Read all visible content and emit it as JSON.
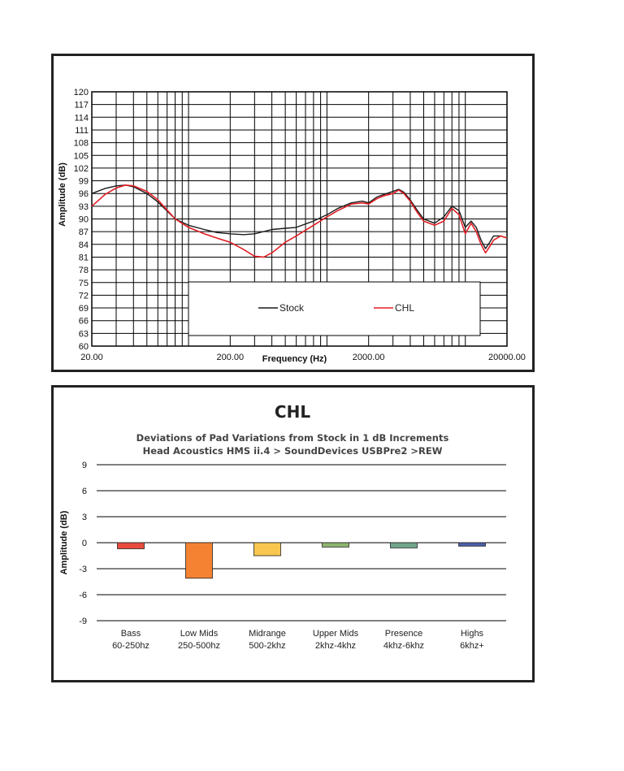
{
  "chart_data": [
    {
      "type": "line",
      "title": "",
      "xlabel": "Frequency (Hz)",
      "ylabel": "Amplitude (dB)",
      "x_scale": "log",
      "xlim": [
        20,
        20000
      ],
      "ylim": [
        60,
        120
      ],
      "x_tick_labels": [
        "20.00",
        "200.00",
        "2000.00",
        "20000.00"
      ],
      "x_ticks": [
        20,
        200,
        2000,
        20000
      ],
      "y_ticks": [
        60,
        63,
        66,
        69,
        72,
        75,
        78,
        81,
        84,
        87,
        90,
        93,
        96,
        99,
        102,
        105,
        108,
        111,
        114,
        117,
        120
      ],
      "grid": true,
      "legend_position": "bottom-center",
      "series": [
        {
          "name": "Stock",
          "color": "#1a1a1a",
          "x": [
            20,
            25,
            30,
            35,
            40,
            50,
            60,
            80,
            100,
            130,
            160,
            200,
            250,
            300,
            400,
            500,
            600,
            800,
            1000,
            1200,
            1500,
            1800,
            2000,
            2300,
            2600,
            3000,
            3300,
            3600,
            4000,
            4500,
            5000,
            6000,
            7000,
            8000,
            9000,
            10000,
            11000,
            12000,
            13000,
            14000,
            15000,
            16000,
            18000,
            20000
          ],
          "y": [
            96.0,
            97.2,
            97.8,
            98.0,
            97.6,
            96.0,
            94.0,
            90.0,
            88.5,
            87.5,
            86.8,
            86.5,
            86.3,
            86.5,
            87.5,
            87.8,
            88.0,
            89.5,
            91.0,
            92.5,
            93.8,
            94.2,
            93.8,
            95.2,
            95.8,
            96.5,
            97.0,
            96.3,
            94.5,
            92.0,
            90.0,
            89.0,
            90.5,
            93.0,
            92.0,
            88.0,
            89.5,
            88.0,
            85.0,
            83.0,
            84.5,
            86.0,
            86.0,
            85.5
          ]
        },
        {
          "name": "CHL",
          "color": "#e31e24",
          "x": [
            20,
            25,
            30,
            35,
            40,
            50,
            60,
            80,
            100,
            130,
            160,
            200,
            250,
            300,
            350,
            400,
            500,
            600,
            800,
            1000,
            1200,
            1500,
            1800,
            2000,
            2300,
            2600,
            3000,
            3300,
            3600,
            4000,
            4500,
            5000,
            6000,
            7000,
            8000,
            9000,
            10000,
            11000,
            12000,
            13000,
            14000,
            15000,
            16000,
            18000,
            20000
          ],
          "y": [
            93.0,
            95.8,
            97.3,
            98.0,
            97.8,
            96.5,
            94.5,
            90.0,
            88.0,
            86.5,
            85.5,
            84.5,
            82.8,
            81.2,
            81.0,
            82.0,
            84.5,
            86.0,
            88.5,
            90.5,
            92.0,
            93.5,
            93.8,
            93.5,
            94.8,
            95.5,
            96.0,
            96.8,
            96.0,
            94.2,
            91.5,
            89.5,
            88.5,
            89.5,
            92.5,
            91.0,
            86.5,
            89.0,
            87.0,
            84.0,
            82.0,
            83.5,
            85.0,
            86.0,
            85.5
          ]
        }
      ]
    },
    {
      "type": "bar",
      "title": "CHL",
      "subtitle_lines": [
        "Deviations of Pad Variations from Stock in 1 dB Increments",
        "Head Acoustics HMS ii.4 > SoundDevices USBPre2 >REW"
      ],
      "xlabel": "",
      "ylabel": "Amplitude (dB)",
      "ylim": [
        -9,
        9
      ],
      "y_ticks": [
        9,
        6,
        3,
        0,
        -3,
        -6,
        -9
      ],
      "grid": true,
      "categories": [
        {
          "name": "Bass",
          "range": "60-250hz"
        },
        {
          "name": "Low Mids",
          "range": "250-500hz"
        },
        {
          "name": "Midrange",
          "range": "500-2khz"
        },
        {
          "name": "Upper Mids",
          "range": "2khz-4khz"
        },
        {
          "name": "Presence",
          "range": "4khz-6khz"
        },
        {
          "name": "Highs",
          "range": "6khz+"
        }
      ],
      "values": [
        -0.7,
        -4.1,
        -1.5,
        -0.5,
        -0.6,
        -0.4
      ],
      "bar_colors": [
        "#e84b3c",
        "#f58233",
        "#f9c74f",
        "#8fb56f",
        "#6fa58a",
        "#4a5fa8"
      ]
    }
  ]
}
